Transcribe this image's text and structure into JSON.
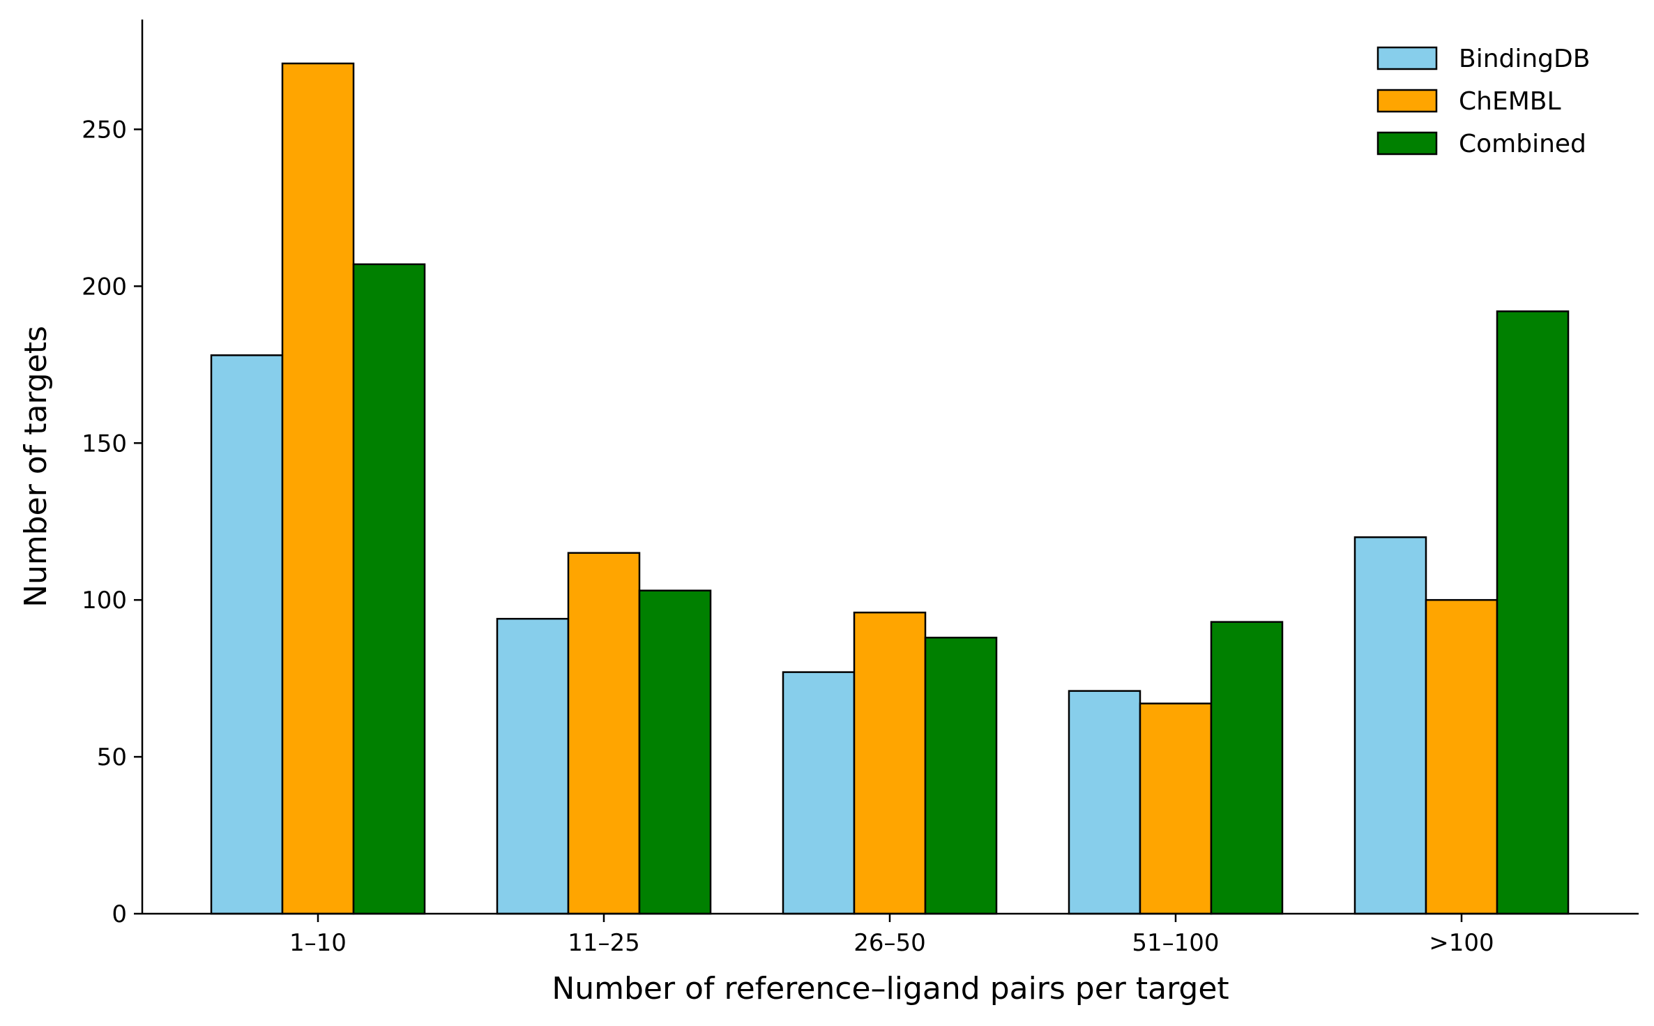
{
  "chart_data": {
    "type": "bar",
    "title": "",
    "xlabel": "Number of reference–ligand pairs per target",
    "ylabel": "Number of targets",
    "categories": [
      "1–10",
      "11–25",
      "26–50",
      "51–100",
      ">100"
    ],
    "series": [
      {
        "name": "BindingDB",
        "color": "#87ceeb",
        "values": [
          178,
          94,
          77,
          71,
          120
        ]
      },
      {
        "name": "ChEMBL",
        "color": "#ffa500",
        "values": [
          271,
          115,
          96,
          67,
          100
        ]
      },
      {
        "name": "Combined",
        "color": "#008000",
        "values": [
          207,
          103,
          88,
          93,
          192
        ]
      }
    ],
    "ylim": [
      0,
      285
    ],
    "yticks": [
      0,
      50,
      100,
      150,
      200,
      250
    ],
    "grid": false,
    "legend_position": "top-right"
  }
}
